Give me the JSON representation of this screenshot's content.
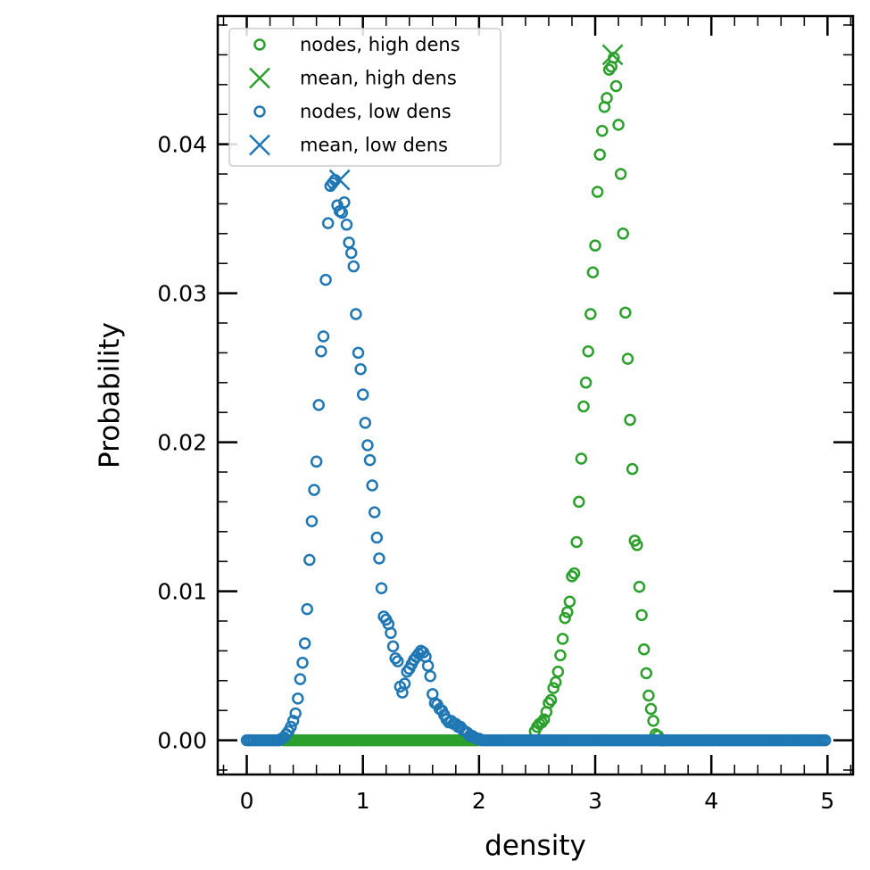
{
  "chart_data": {
    "type": "scatter",
    "xlabel": "density",
    "ylabel": "Probability",
    "xlim": [
      -0.25,
      5.22
    ],
    "ylim": [
      -0.0023,
      0.0486
    ],
    "xticks": [
      0,
      1,
      2,
      3,
      4,
      5
    ],
    "xtick_labels": [
      "0",
      "1",
      "2",
      "3",
      "4",
      "5"
    ],
    "yticks": [
      0.0,
      0.01,
      0.02,
      0.03,
      0.04
    ],
    "ytick_labels": [
      "0.00",
      "0.01",
      "0.02",
      "0.03",
      "0.04"
    ],
    "grid": false,
    "legend_position": "top-left",
    "colors": {
      "high": "#2ca02c",
      "low": "#1f77b4"
    },
    "series": [
      {
        "name": "nodes, high dens",
        "marker": "open-circle",
        "color": "#2ca02c",
        "x": [
          2.48,
          2.5,
          2.52,
          2.54,
          2.56,
          2.58,
          2.6,
          2.62,
          2.64,
          2.66,
          2.68,
          2.7,
          2.72,
          2.74,
          2.76,
          2.78,
          2.8,
          2.82,
          2.84,
          2.86,
          2.88,
          2.9,
          2.92,
          2.94,
          2.96,
          2.98,
          3.0,
          3.02,
          3.04,
          3.06,
          3.08,
          3.1,
          3.12,
          3.14,
          3.16,
          3.18,
          3.2,
          3.22,
          3.24,
          3.26,
          3.28,
          3.3,
          3.32,
          3.34,
          3.36,
          3.38,
          3.4,
          3.42,
          3.44,
          3.46,
          3.48,
          3.5,
          3.52,
          3.54
        ],
        "y": [
          0.0006,
          0.0009,
          0.0011,
          0.0012,
          0.0014,
          0.0019,
          0.0025,
          0.0027,
          0.0035,
          0.0039,
          0.0046,
          0.0057,
          0.0068,
          0.0082,
          0.0086,
          0.0093,
          0.011,
          0.0112,
          0.0133,
          0.016,
          0.0189,
          0.0224,
          0.024,
          0.0261,
          0.0286,
          0.0314,
          0.0332,
          0.0368,
          0.0393,
          0.0409,
          0.0425,
          0.0431,
          0.045,
          0.0452,
          0.0458,
          0.0439,
          0.0413,
          0.038,
          0.034,
          0.0287,
          0.0256,
          0.0215,
          0.0182,
          0.0134,
          0.0131,
          0.0103,
          0.0084,
          0.0061,
          0.0045,
          0.003,
          0.0021,
          0.0013,
          0.0004,
          0.0003
        ]
      },
      {
        "name": "mean, high dens",
        "marker": "x",
        "color": "#2ca02c",
        "x": [
          3.15
        ],
        "y": [
          0.046
        ]
      },
      {
        "name": "nodes, low dens",
        "marker": "open-circle",
        "color": "#1f77b4",
        "x": [
          0.3,
          0.32,
          0.34,
          0.36,
          0.38,
          0.4,
          0.42,
          0.44,
          0.46,
          0.48,
          0.5,
          0.52,
          0.54,
          0.56,
          0.58,
          0.6,
          0.62,
          0.64,
          0.66,
          0.68,
          0.7,
          0.72,
          0.74,
          0.76,
          0.78,
          0.8,
          0.82,
          0.84,
          0.86,
          0.88,
          0.9,
          0.92,
          0.94,
          0.96,
          0.98,
          1.0,
          1.02,
          1.04,
          1.06,
          1.08,
          1.1,
          1.12,
          1.14,
          1.16,
          1.18,
          1.2,
          1.22,
          1.24,
          1.26,
          1.28,
          1.3,
          1.32,
          1.34,
          1.36,
          1.38,
          1.4,
          1.42,
          1.44,
          1.46,
          1.48,
          1.5,
          1.52,
          1.54,
          1.56,
          1.58,
          1.6,
          1.62,
          1.64,
          1.66,
          1.68,
          1.7,
          1.72,
          1.74,
          1.76,
          1.78,
          1.8,
          1.82,
          1.84,
          1.86,
          1.88,
          1.9,
          1.92,
          1.94,
          1.96,
          1.98,
          2.0,
          2.02,
          2.04
        ],
        "y": [
          0.0001,
          0.0002,
          0.0004,
          0.0006,
          0.0009,
          0.0013,
          0.0018,
          0.0028,
          0.0041,
          0.0052,
          0.0065,
          0.0088,
          0.0121,
          0.0147,
          0.0168,
          0.0187,
          0.0225,
          0.0261,
          0.0271,
          0.0309,
          0.0347,
          0.0372,
          0.0374,
          0.0376,
          0.0359,
          0.0355,
          0.0354,
          0.0361,
          0.0346,
          0.0334,
          0.0327,
          0.0318,
          0.0286,
          0.026,
          0.0249,
          0.0232,
          0.0213,
          0.0198,
          0.0188,
          0.0171,
          0.0153,
          0.0136,
          0.0122,
          0.0102,
          0.0083,
          0.0081,
          0.0078,
          0.0072,
          0.0063,
          0.0055,
          0.0053,
          0.0036,
          0.0032,
          0.0038,
          0.0046,
          0.0048,
          0.0051,
          0.0054,
          0.0056,
          0.0058,
          0.006,
          0.0059,
          0.0056,
          0.005,
          0.0043,
          0.0031,
          0.0025,
          0.0024,
          0.0021,
          0.002,
          0.0017,
          0.0014,
          0.0012,
          0.0013,
          0.0011,
          0.0011,
          0.0009,
          0.0009,
          0.0007,
          0.0006,
          0.0005,
          0.0003,
          0.0003,
          0.0002,
          0.0001,
          0.0001,
          0.0,
          0.0
        ]
      },
      {
        "name": "mean, low dens",
        "marker": "x",
        "color": "#1f77b4",
        "x": [
          0.8
        ],
        "y": [
          0.0376
        ]
      }
    ]
  }
}
